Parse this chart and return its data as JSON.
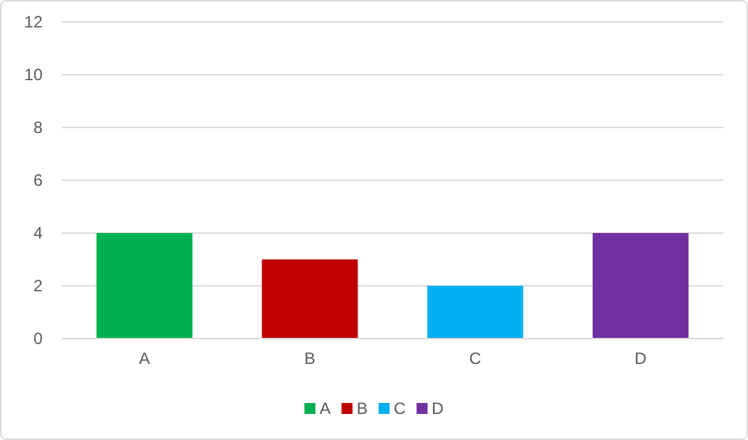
{
  "chart_data": {
    "type": "bar",
    "categories": [
      "A",
      "B",
      "C",
      "D"
    ],
    "stacked": true,
    "series": [
      {
        "name": "A",
        "color": "#00b050",
        "values": [
          4,
          null,
          null,
          null
        ]
      },
      {
        "name": "B",
        "color": "#c00000",
        "values": [
          null,
          3,
          null,
          null
        ]
      },
      {
        "name": "C",
        "color": "#00b0f0",
        "values": [
          null,
          null,
          2,
          null
        ]
      },
      {
        "name": "D",
        "color": "#7030a0",
        "values": [
          null,
          null,
          null,
          4
        ]
      }
    ],
    "ylim": [
      0,
      12
    ],
    "yticks": [
      0,
      2,
      4,
      6,
      8,
      10,
      12
    ],
    "grid": "y",
    "legend": "bottom"
  }
}
